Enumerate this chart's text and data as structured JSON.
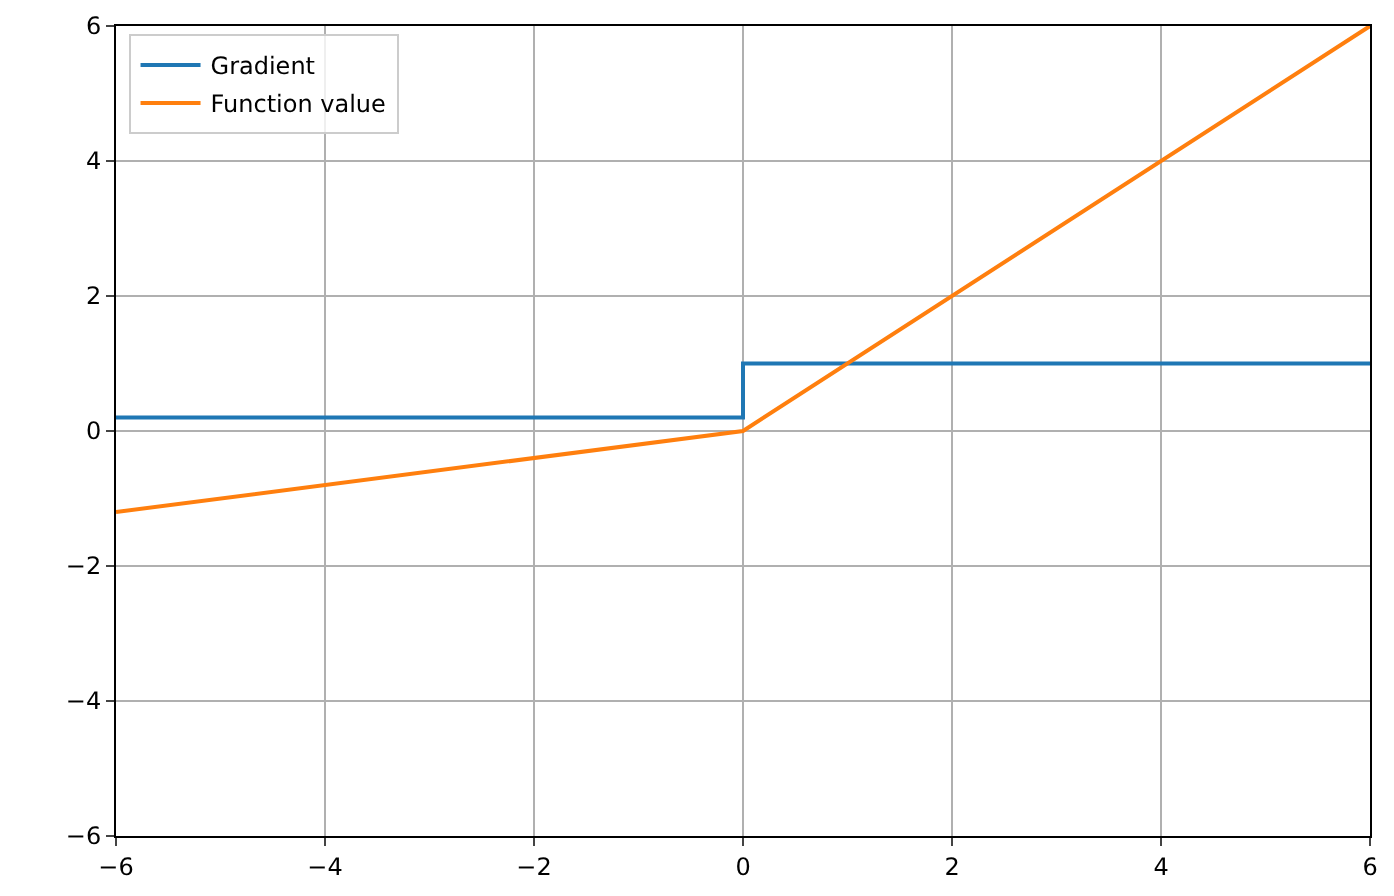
{
  "chart_data": {
    "type": "line",
    "series": [
      {
        "name": "Gradient",
        "color": "#1f77b4",
        "x": [
          -6,
          0,
          0,
          6
        ],
        "values": [
          0.2,
          0.2,
          1,
          1
        ]
      },
      {
        "name": "Function value",
        "color": "#ff7f0e",
        "x": [
          -6,
          0,
          6
        ],
        "values": [
          -1.2,
          0,
          6
        ]
      }
    ],
    "xlim": [
      -6,
      6
    ],
    "ylim": [
      -6,
      6
    ],
    "xticks": [
      {
        "value": -6,
        "label": "−6"
      },
      {
        "value": -4,
        "label": "−4"
      },
      {
        "value": -2,
        "label": "−2"
      },
      0,
      2,
      4,
      6
    ],
    "yticks": [
      {
        "value": -6,
        "label": "−6"
      },
      {
        "value": -4,
        "label": "−4"
      },
      {
        "value": -2,
        "label": "−2"
      },
      0,
      2,
      4,
      6
    ],
    "grid": true,
    "legend": "top left",
    "marker": "none",
    "line_style": "solid"
  }
}
